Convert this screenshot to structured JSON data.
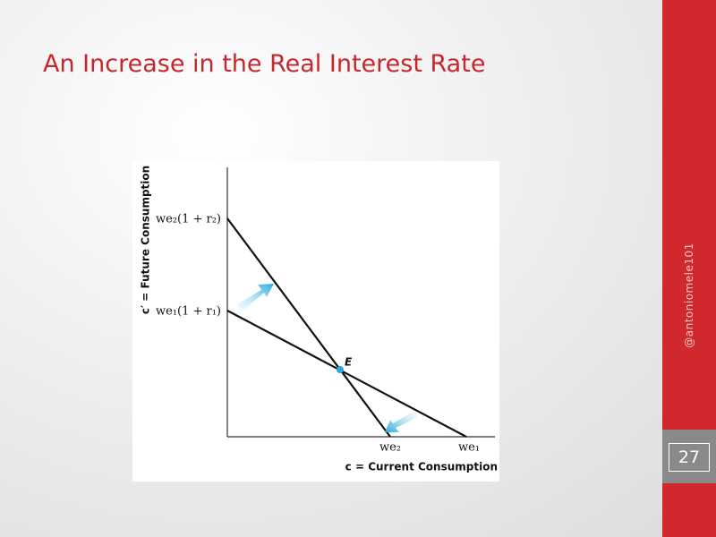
{
  "slide": {
    "title": "An Increase in the Real Interest Rate",
    "handle": "@antoniomele101",
    "page_number": "27"
  },
  "diagram": {
    "y_axis_label": "c′ = Future Consumption",
    "x_axis_label": "c = Current Consumption",
    "y_intercept_high": "we₂(1 + r₂)",
    "y_intercept_low": "we₁(1 + r₁)",
    "point_label": "E",
    "x_intercept_left": "we₂",
    "x_intercept_right": "we₁"
  }
}
